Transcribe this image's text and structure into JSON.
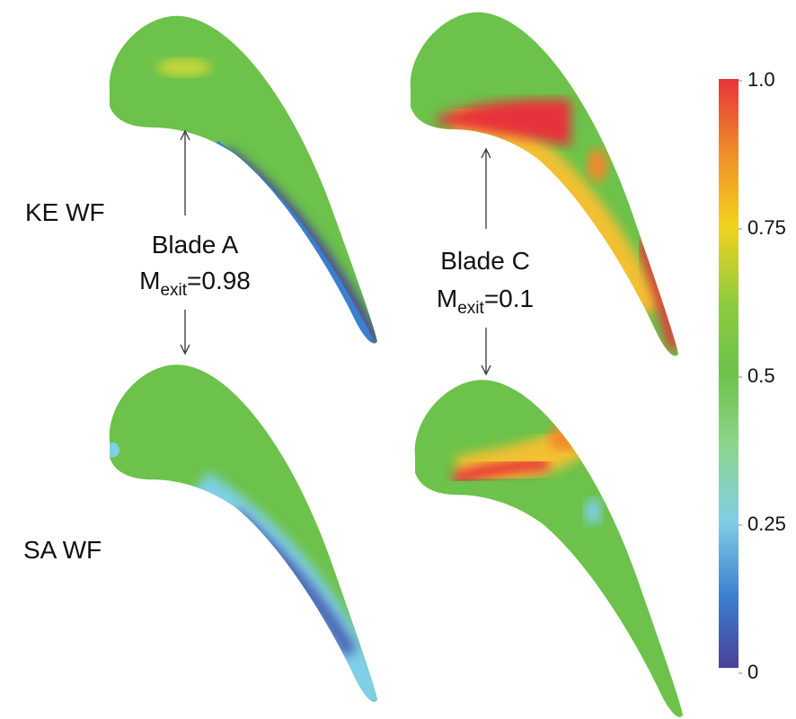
{
  "row_labels": [
    "KE WF",
    "SA WF"
  ],
  "blades": [
    {
      "name": "Blade A",
      "mach_symbol": "M",
      "mach_subscript": "exit",
      "mach_value": "=0.98"
    },
    {
      "name": "Blade C",
      "mach_symbol": "M",
      "mach_subscript": "exit",
      "mach_value": "=0.1"
    }
  ],
  "colorbar": {
    "lim": [
      0,
      1
    ],
    "ticks": [
      {
        "value": 1,
        "label": "1.0"
      },
      0.75,
      0.5,
      0.25,
      0
    ]
  }
}
